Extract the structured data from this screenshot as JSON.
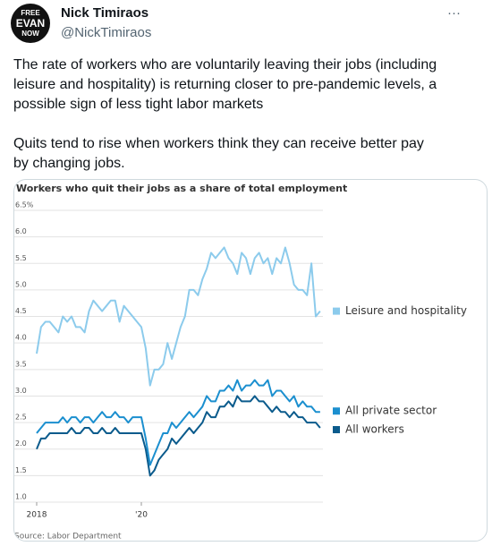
{
  "tweet": {
    "avatar_text": [
      "FREE",
      "EVAN",
      "NOW"
    ],
    "author": "Nick Timiraos",
    "handle": "@NickTimiraos",
    "menu": "···",
    "paragraphs": [
      "The rate of workers who are voluntarily leaving their jobs (including leisure and hospitality) is returning closer to pre-pandemic levels, a possible sign of less tight labor markets",
      "Quits tend to rise when workers think they can receive better pay by changing jobs."
    ]
  },
  "chart_data": {
    "type": "line",
    "title": "Workers who quit their jobs as a share of total employment",
    "source": "Source: Labor Department",
    "categories": [
      "2018",
      null,
      null,
      null,
      null,
      null,
      null,
      null,
      null,
      null,
      null,
      null,
      null,
      null,
      null,
      null,
      null,
      null,
      null,
      null,
      null,
      null,
      null,
      null,
      "'20",
      null,
      null,
      null,
      null,
      null,
      null,
      null,
      null,
      null,
      null,
      null,
      null,
      null,
      null,
      null,
      null,
      null,
      null,
      null,
      null,
      null,
      null,
      null,
      null,
      null,
      null,
      null,
      null,
      null,
      null,
      null,
      null,
      null,
      null,
      null,
      null,
      null,
      null,
      null,
      null,
      null
    ],
    "ylim": [
      1,
      6.5
    ],
    "yticks": [
      {
        "value": 1,
        "label": "1.0"
      },
      {
        "value": 1.5,
        "label": "1.5"
      },
      {
        "value": 2,
        "label": "2.0"
      },
      {
        "value": 2.5,
        "label": "2.5"
      },
      {
        "value": 3,
        "label": "3.0"
      },
      {
        "value": 3.5,
        "label": "3.5"
      },
      {
        "value": 4,
        "label": "4.0"
      },
      {
        "value": 4.5,
        "label": "4.5"
      },
      {
        "value": 5,
        "label": "5.0"
      },
      {
        "value": 5.5,
        "label": "5.5"
      },
      {
        "value": 6,
        "label": "6.0"
      },
      {
        "value": 6.5,
        "label": "6.5%"
      }
    ],
    "grid": true,
    "series": [
      {
        "name": "Leisure and hospitality",
        "color": "#8ccbec",
        "values": [
          3.8,
          4.3,
          4.4,
          4.4,
          4.3,
          4.2,
          4.5,
          4.4,
          4.5,
          4.3,
          4.3,
          4.2,
          4.6,
          4.8,
          4.7,
          4.6,
          4.7,
          4.8,
          4.8,
          4.4,
          4.7,
          4.6,
          4.5,
          4.4,
          4.3,
          3.9,
          3.2,
          3.5,
          3.5,
          3.6,
          4.0,
          3.7,
          4.0,
          4.3,
          4.5,
          5.0,
          5.0,
          4.9,
          5.2,
          5.4,
          5.7,
          5.6,
          5.7,
          5.8,
          5.6,
          5.5,
          5.3,
          5.7,
          5.6,
          5.3,
          5.6,
          5.7,
          5.5,
          5.6,
          5.3,
          5.6,
          5.5,
          5.8,
          5.5,
          5.1,
          5.0,
          5.0,
          4.9,
          5.5,
          4.5,
          4.6
        ]
      },
      {
        "name": "All private sector",
        "color": "#1b8fcf",
        "values": [
          2.3,
          2.4,
          2.5,
          2.5,
          2.5,
          2.5,
          2.6,
          2.5,
          2.6,
          2.6,
          2.5,
          2.6,
          2.6,
          2.5,
          2.6,
          2.7,
          2.6,
          2.6,
          2.7,
          2.6,
          2.6,
          2.5,
          2.6,
          2.6,
          2.6,
          2.2,
          1.7,
          1.9,
          2.1,
          2.3,
          2.3,
          2.5,
          2.4,
          2.5,
          2.6,
          2.7,
          2.6,
          2.7,
          2.8,
          3.0,
          2.9,
          2.9,
          3.1,
          3.1,
          3.2,
          3.1,
          3.3,
          3.1,
          3.2,
          3.2,
          3.3,
          3.2,
          3.2,
          3.3,
          3.0,
          3.1,
          3.1,
          3.0,
          2.9,
          3.0,
          2.8,
          2.9,
          2.8,
          2.8,
          2.7,
          2.7
        ]
      },
      {
        "name": "All workers",
        "color": "#0b5b8c",
        "values": [
          2.0,
          2.2,
          2.2,
          2.3,
          2.3,
          2.3,
          2.3,
          2.3,
          2.4,
          2.3,
          2.3,
          2.4,
          2.4,
          2.3,
          2.3,
          2.4,
          2.3,
          2.3,
          2.4,
          2.3,
          2.3,
          2.3,
          2.3,
          2.3,
          2.3,
          2.0,
          1.5,
          1.6,
          1.8,
          1.9,
          2.0,
          2.2,
          2.1,
          2.2,
          2.3,
          2.4,
          2.3,
          2.4,
          2.5,
          2.7,
          2.6,
          2.6,
          2.8,
          2.8,
          2.9,
          2.8,
          3.0,
          2.9,
          2.9,
          2.9,
          3.0,
          2.9,
          2.9,
          2.8,
          2.7,
          2.8,
          2.7,
          2.7,
          2.6,
          2.7,
          2.6,
          2.6,
          2.5,
          2.5,
          2.5,
          2.4
        ]
      }
    ]
  }
}
